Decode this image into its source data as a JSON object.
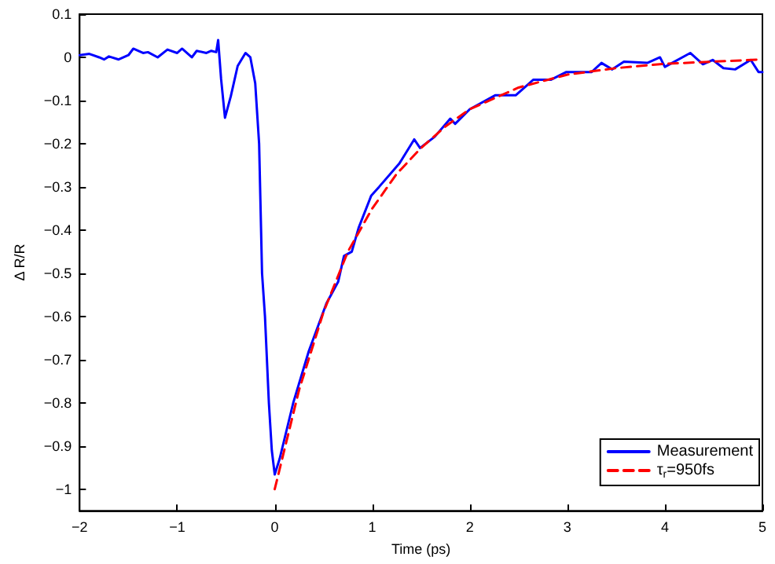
{
  "chart_data": {
    "type": "line",
    "xlabel": "Time (ps)",
    "ylabel": "Δ R/R",
    "xlim": [
      -2,
      5
    ],
    "xticks": [
      -2,
      -1,
      0,
      1,
      2,
      3,
      4,
      5
    ],
    "ylim": [
      -1.05,
      0.1
    ],
    "yticks": [
      -1,
      -0.9,
      -0.8,
      -0.7,
      -0.6,
      -0.5,
      -0.4,
      -0.3,
      -0.2,
      -0.1,
      0,
      0.1
    ],
    "grid": false,
    "legend": "bottom right",
    "marker": "none",
    "series": [
      {
        "name": "Measurement",
        "color": "#0000ff",
        "line_style": "solid",
        "x": [
          -2,
          -1.9,
          -1.8,
          -1.75,
          -1.7,
          -1.6,
          -1.5,
          -1.45,
          -1.35,
          -1.3,
          -1.2,
          -1.1,
          -1,
          -0.95,
          -0.85,
          -0.8,
          -0.7,
          -0.65,
          -0.6,
          -0.58,
          -0.55,
          -0.51,
          -0.45,
          -0.38,
          -0.3,
          -0.25,
          -0.2,
          -0.16,
          -0.13,
          -0.1,
          -0.06,
          -0.03,
          0,
          0.05,
          0.19,
          0.35,
          0.53,
          0.65,
          0.71,
          0.79,
          0.86,
          0.99,
          1.07,
          1.28,
          1.43,
          1.49,
          1.64,
          1.8,
          1.85,
          2,
          2.26,
          2.47,
          2.65,
          2.83,
          2.99,
          3.25,
          3.35,
          3.46,
          3.58,
          3.82,
          3.95,
          4,
          4.26,
          4.39,
          4.49,
          4.6,
          4.72,
          4.88,
          4.96,
          5
        ],
        "values": [
          0.005,
          0.008,
          0,
          -0.005,
          0.002,
          -0.005,
          0.005,
          0.02,
          0.01,
          0.012,
          0,
          0.018,
          0.01,
          0.02,
          0,
          0.015,
          0.01,
          0.015,
          0.012,
          0.04,
          -0.05,
          -0.14,
          -0.09,
          -0.02,
          0.01,
          0,
          -0.06,
          -0.2,
          -0.5,
          -0.6,
          -0.8,
          -0.91,
          -0.966,
          -0.93,
          -0.8,
          -0.68,
          -0.57,
          -0.52,
          -0.46,
          -0.45,
          -0.395,
          -0.32,
          -0.3,
          -0.245,
          -0.19,
          -0.21,
          -0.184,
          -0.142,
          -0.154,
          -0.12,
          -0.088,
          -0.088,
          -0.052,
          -0.052,
          -0.034,
          -0.034,
          -0.013,
          -0.028,
          -0.01,
          -0.013,
          0,
          -0.022,
          0.01,
          -0.016,
          -0.006,
          -0.025,
          -0.028,
          -0.006,
          -0.034,
          -0.034
        ]
      },
      {
        "name": "τ$_{r}$=950fs",
        "color": "#ff0000",
        "line_style": "dashed",
        "x": [
          0,
          0.25,
          0.5,
          0.75,
          1,
          1.25,
          1.5,
          1.75,
          2,
          2.5,
          3,
          3.5,
          4,
          4.5,
          5
        ],
        "values": [
          -1,
          -0.77,
          -0.59,
          -0.45,
          -0.35,
          -0.27,
          -0.21,
          -0.16,
          -0.12,
          -0.07,
          -0.04,
          -0.025,
          -0.015,
          -0.01,
          -0.005
        ]
      }
    ]
  }
}
